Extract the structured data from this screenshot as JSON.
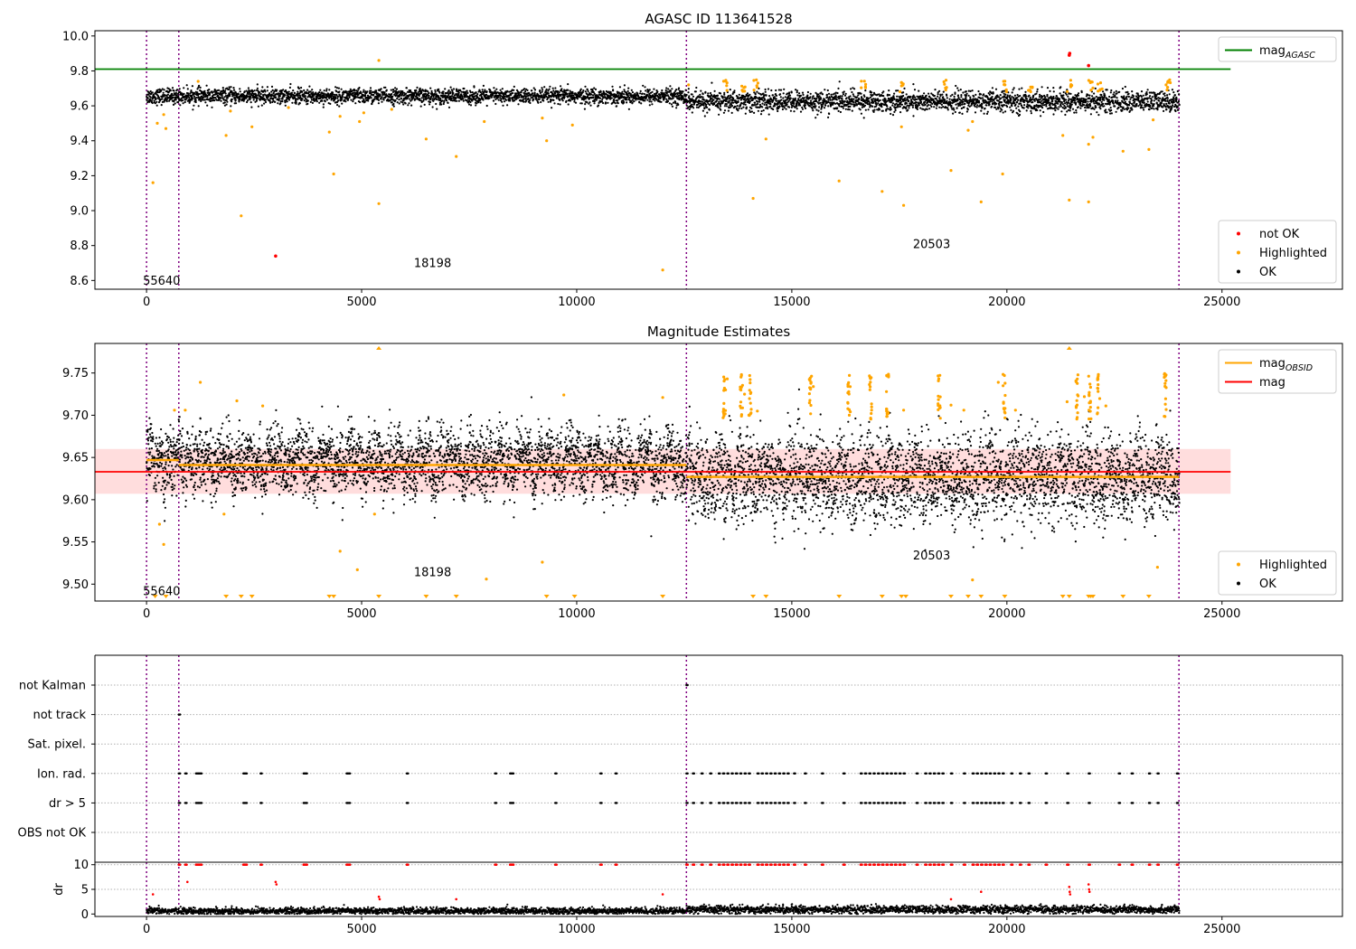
{
  "chart_data": [
    {
      "id": "agasc",
      "type": "scatter",
      "title": "AGASC ID 113641528",
      "xlim": [
        -1200,
        27800
      ],
      "ylim": [
        8.55,
        10.03
      ],
      "xticks": [
        0,
        5000,
        10000,
        15000,
        20000,
        25000
      ],
      "yticks": [
        8.6,
        8.8,
        9.0,
        9.2,
        9.4,
        9.6,
        9.8,
        10.0
      ],
      "ytick_labels": [
        "8.6",
        "8.8",
        "9.0",
        "9.2",
        "9.4",
        "9.6",
        "9.8",
        "10.0"
      ],
      "obsid_boundaries": [
        0,
        750,
        12550,
        24000
      ],
      "obsid_labels": [
        {
          "text": "55640",
          "x": 350,
          "y": 8.6
        },
        {
          "text": "18198",
          "x": 6650,
          "y": 8.7
        },
        {
          "text": "20503",
          "x": 18250,
          "y": 8.81
        }
      ],
      "hlines": [
        {
          "name": "mag_AGASC",
          "y": 9.81,
          "color": "#008000",
          "x_end": 25200
        }
      ],
      "series": [
        {
          "name": "not OK",
          "color": "#ff0000",
          "x": [
            3000,
            21450,
            21460,
            21900
          ],
          "y": [
            8.74,
            9.89,
            9.9,
            9.83
          ]
        },
        {
          "name": "Highlighted",
          "color": "#ffa500",
          "x": [
            150,
            250,
            400,
            450,
            1200,
            1850,
            1950,
            2200,
            2450,
            3300,
            4250,
            4350,
            4500,
            4950,
            5050,
            5400,
            5400,
            5700,
            6500,
            7200,
            7850,
            9200,
            9300,
            9900,
            12000,
            12600,
            14100,
            14400,
            16100,
            17100,
            17550,
            17600,
            18700,
            19100,
            19200,
            19400,
            19900,
            21300,
            21450,
            21900,
            21900,
            22000,
            22700,
            23300,
            23400,
            23700
          ],
          "y": [
            9.16,
            9.5,
            9.55,
            9.47,
            9.74,
            9.43,
            9.57,
            8.97,
            9.48,
            9.59,
            9.45,
            9.21,
            9.54,
            9.51,
            9.56,
            9.86,
            9.04,
            9.58,
            9.41,
            9.31,
            9.51,
            9.53,
            9.4,
            9.49,
            8.66,
            9.72,
            9.07,
            9.41,
            9.17,
            9.11,
            9.48,
            9.03,
            9.23,
            9.46,
            9.51,
            9.05,
            9.21,
            9.43,
            9.06,
            9.05,
            9.38,
            9.42,
            9.34,
            9.35,
            9.52,
            9.72
          ]
        },
        {
          "name": "OK",
          "color": "#000000",
          "generated_band": [
            [
              0,
              9.655,
              0.022
            ],
            [
              12550,
              9.625,
              0.03
            ],
            [
              24000,
              9.615,
              0.03
            ]
          ]
        }
      ],
      "legends": [
        {
          "position": "top-right",
          "items": [
            {
              "label": "mag",
              "sub": "AGASC",
              "kind": "line",
              "color": "#008000"
            }
          ]
        },
        {
          "position": "lower-right",
          "items": [
            {
              "label": "not OK",
              "kind": "dot",
              "color": "#ff0000"
            },
            {
              "label": "Highlighted",
              "kind": "dot",
              "color": "#ffa500"
            },
            {
              "label": "OK",
              "kind": "dot",
              "color": "#000000"
            }
          ]
        }
      ]
    },
    {
      "id": "estimates",
      "type": "scatter",
      "title": "Magnitude Estimates",
      "xlim": [
        -1200,
        27800
      ],
      "ylim": [
        9.48,
        9.785
      ],
      "xticks": [
        0,
        5000,
        10000,
        15000,
        20000,
        25000
      ],
      "yticks": [
        9.5,
        9.55,
        9.6,
        9.65,
        9.7,
        9.75
      ],
      "ytick_labels": [
        "9.50",
        "9.55",
        "9.60",
        "9.65",
        "9.70",
        "9.75"
      ],
      "obsid_boundaries": [
        0,
        750,
        12550,
        24000
      ],
      "obsid_labels": [
        {
          "text": "55640",
          "x": 350,
          "y": 9.492
        },
        {
          "text": "18198",
          "x": 6650,
          "y": 9.514
        },
        {
          "text": "20503",
          "x": 18250,
          "y": 9.534
        }
      ],
      "band": {
        "y0": 9.607,
        "y1": 9.66,
        "x_end": 25200,
        "color": "#ffdddd"
      },
      "hlines": [
        {
          "name": "mag",
          "y": 9.633,
          "color": "#ff0000",
          "x_end": 25200
        }
      ],
      "obsid_mags": [
        {
          "x0": 0,
          "x1": 750,
          "y": 9.647
        },
        {
          "x0": 750,
          "x1": 12550,
          "y": 9.641
        },
        {
          "x0": 12550,
          "x1": 24000,
          "y": 9.627
        }
      ],
      "lower_markers_x": [
        200,
        450,
        1850,
        2200,
        2450,
        4250,
        4350,
        5400,
        6500,
        7200,
        9300,
        9950,
        12000,
        14100,
        14400,
        16100,
        17100,
        17550,
        17650,
        18700,
        19100,
        19400,
        19950,
        21300,
        21450,
        21900,
        21950,
        22000,
        22700,
        23300
      ],
      "upper_markers_x": [
        5400,
        21450
      ],
      "series": [
        {
          "name": "Highlighted",
          "color": "#ffa500",
          "x": [
            300,
            400,
            650,
            900,
            1250,
            1800,
            2100,
            2700,
            4500,
            4900,
            5300,
            7900,
            9200,
            9700,
            12000,
            13500,
            13900,
            14200,
            15500,
            16300,
            17200,
            17600,
            18700,
            19000,
            19200,
            19800,
            20200,
            21400,
            21800,
            22300,
            23500
          ],
          "y": [
            9.571,
            9.547,
            9.706,
            9.706,
            9.739,
            9.583,
            9.717,
            9.711,
            9.539,
            9.517,
            9.583,
            9.506,
            9.526,
            9.724,
            9.721,
            9.743,
            9.725,
            9.705,
            9.734,
            9.715,
            9.728,
            9.706,
            9.712,
            9.706,
            9.505,
            9.739,
            9.706,
            9.716,
            9.722,
            9.711,
            9.52
          ]
        },
        {
          "name": "OK",
          "color": "#000000",
          "generated_band": [
            [
              0,
              9.645,
              0.022
            ],
            [
              12550,
              9.626,
              0.03
            ],
            [
              24000,
              9.615,
              0.03
            ]
          ]
        }
      ],
      "legends": [
        {
          "position": "top-right",
          "items": [
            {
              "label": "mag",
              "sub": "OBSID",
              "kind": "line",
              "color": "#ffa500"
            },
            {
              "label": "mag",
              "sub": "",
              "kind": "line",
              "color": "#ff0000"
            }
          ]
        },
        {
          "position": "lower-right",
          "items": [
            {
              "label": "Highlighted",
              "kind": "dot",
              "color": "#ffa500"
            },
            {
              "label": "OK",
              "kind": "dot",
              "color": "#000000"
            }
          ]
        }
      ]
    },
    {
      "id": "flags",
      "type": "scatter",
      "title": "",
      "xlim": [
        -1200,
        27800
      ],
      "categories": [
        "not Kalman",
        "not track",
        "Sat. pixel.",
        "Ion. rad.",
        "dr > 5",
        "OBS not OK"
      ],
      "obsid_boundaries": [
        0,
        750,
        12550,
        24000
      ],
      "flag_points": {
        "not track": [
          750
        ],
        "not Kalman": [
          12550
        ],
        "Ion. rad.": [
          750,
          900,
          1150,
          1200,
          1250,
          2250,
          2300,
          2650,
          3650,
          3700,
          4650,
          4700,
          6050,
          8100,
          8450,
          8500,
          9500,
          10550,
          10900,
          12550,
          12700,
          12900,
          13100,
          13300,
          13400,
          13500,
          13600,
          13700,
          13800,
          13900,
          14000,
          14200,
          14300,
          14400,
          14500,
          14600,
          14700,
          14800,
          14900,
          15050,
          15300,
          15700,
          16200,
          16600,
          16700,
          16800,
          16900,
          17000,
          17100,
          17200,
          17300,
          17400,
          17500,
          17600,
          17900,
          18100,
          18200,
          18300,
          18400,
          18500,
          18700,
          19000,
          19200,
          19300,
          19400,
          19500,
          19600,
          19700,
          19800,
          19900,
          20100,
          20300,
          20500,
          20900,
          21400,
          21900,
          22600,
          22900,
          23300,
          23500,
          23950
        ],
        "dr > 5": [
          750,
          900,
          1150,
          1200,
          1250,
          2250,
          2300,
          2650,
          3650,
          3700,
          4650,
          4700,
          6050,
          8100,
          8450,
          8500,
          9500,
          10550,
          10900,
          12550,
          12700,
          12900,
          13100,
          13300,
          13400,
          13500,
          13600,
          13700,
          13800,
          13900,
          14000,
          14200,
          14300,
          14400,
          14500,
          14600,
          14700,
          14800,
          14900,
          15050,
          15300,
          15700,
          16200,
          16600,
          16700,
          16800,
          16900,
          17000,
          17100,
          17200,
          17300,
          17400,
          17500,
          17600,
          17900,
          18100,
          18200,
          18300,
          18400,
          18500,
          18700,
          19000,
          19200,
          19300,
          19400,
          19500,
          19600,
          19700,
          19800,
          19900,
          20100,
          20300,
          20500,
          20900,
          21400,
          21900,
          22600,
          22900,
          23300,
          23500,
          23950
        ]
      }
    },
    {
      "id": "dr",
      "type": "scatter",
      "title": "",
      "ylabel": "dr",
      "xlim": [
        -1200,
        27800
      ],
      "ylim": [
        -0.5,
        10.5
      ],
      "xticks": [
        0,
        5000,
        10000,
        15000,
        20000,
        25000
      ],
      "yticks": [
        0,
        5,
        10
      ],
      "ytick_labels": [
        "0",
        "5",
        "10"
      ],
      "obsid_boundaries": [
        0,
        750,
        12550,
        24000
      ],
      "series": [
        {
          "name": "not OK",
          "color": "#ff0000",
          "x": [
            150,
            950,
            3000,
            3020,
            5400,
            5420,
            7200,
            12000,
            18700,
            19400,
            21450,
            21460,
            21470,
            21900,
            21910,
            21920
          ],
          "y": [
            4.0,
            6.5,
            6.5,
            6.0,
            3.5,
            3.0,
            3.0,
            4.0,
            3.0,
            4.5,
            5.5,
            4.5,
            4.0,
            6.0,
            5.0,
            4.5
          ]
        },
        {
          "name": "clipped",
          "color": "#ff0000",
          "y_value": 10,
          "x_clusters": [
            750,
            900,
            1150,
            1200,
            1250,
            2250,
            2300,
            2650,
            3650,
            3700,
            4650,
            4700,
            6050,
            8100,
            8450,
            8500,
            9500,
            10550,
            10900,
            12550,
            12700,
            12900,
            13100,
            13300,
            13400,
            13500,
            13600,
            13700,
            13800,
            13900,
            14000,
            14200,
            14300,
            14400,
            14500,
            14600,
            14700,
            14800,
            14900,
            15050,
            15300,
            15700,
            16200,
            16600,
            16700,
            16800,
            16900,
            17000,
            17100,
            17200,
            17300,
            17400,
            17500,
            17600,
            17900,
            18100,
            18200,
            18300,
            18400,
            18500,
            18700,
            19000,
            19200,
            19300,
            19400,
            19500,
            19600,
            19700,
            19800,
            19900,
            20100,
            20300,
            20500,
            20900,
            21400,
            21900,
            22600,
            22900,
            23300,
            23500,
            23950
          ]
        },
        {
          "name": "OK",
          "color": "#000000",
          "generated_band": [
            [
              0,
              0.6,
              0.35
            ],
            [
              12550,
              0.9,
              0.4
            ],
            [
              24000,
              0.9,
              0.4
            ]
          ]
        }
      ]
    }
  ]
}
